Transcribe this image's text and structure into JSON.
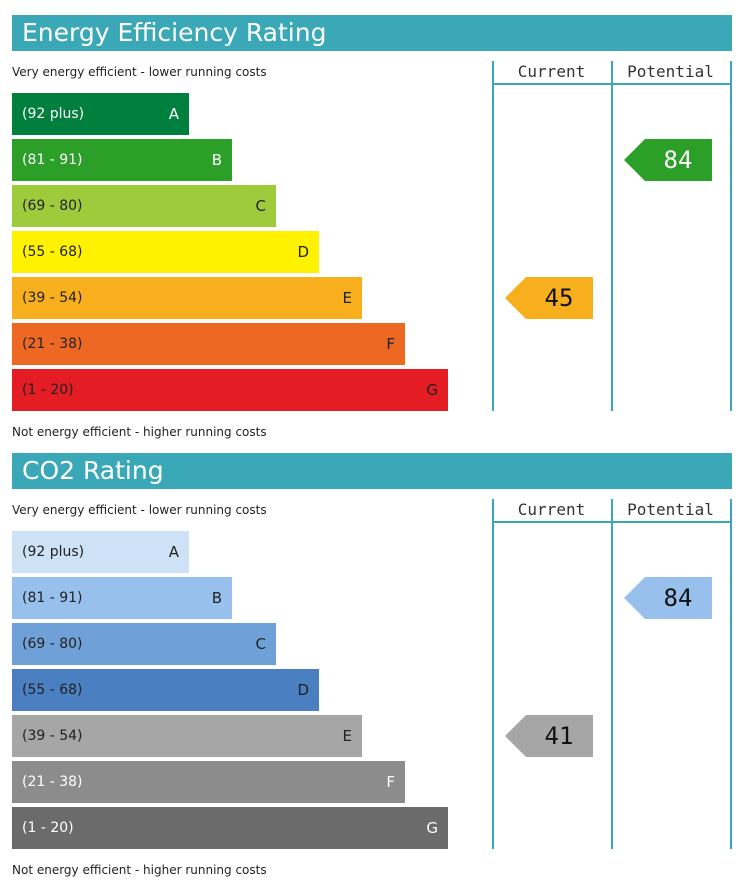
{
  "energy": {
    "title": "Energy Efficiency Rating",
    "top_caption": "Very energy efficient - lower running costs",
    "bottom_caption": "Not energy efficient - higher running costs",
    "col_current": "Current",
    "col_potential": "Potential",
    "bands": [
      {
        "range": "(92 plus)",
        "letter": "A",
        "color": "#007f3d",
        "text_color": "#ffffff"
      },
      {
        "range": "(81 - 91)",
        "letter": "B",
        "color": "#2c9f29",
        "text_color": "#ffffff"
      },
      {
        "range": "(69 - 80)",
        "letter": "C",
        "color": "#9dcb3c",
        "text_color": "#222222"
      },
      {
        "range": "(55 - 68)",
        "letter": "D",
        "color": "#fff200",
        "text_color": "#222222"
      },
      {
        "range": "(39 - 54)",
        "letter": "E",
        "color": "#f7af1d",
        "text_color": "#222222"
      },
      {
        "range": "(21 - 38)",
        "letter": "F",
        "color": "#ed6823",
        "text_color": "#222222"
      },
      {
        "range": "(1 - 20)",
        "letter": "G",
        "color": "#e31d23",
        "text_color": "#222222"
      }
    ],
    "current": {
      "value": "45",
      "band": "E",
      "color": "#f7af1d"
    },
    "potential": {
      "value": "84",
      "band": "B",
      "color": "#2c9f29",
      "text_color": "#ffffff"
    }
  },
  "co2": {
    "title": "CO2 Rating",
    "top_caption": "Very energy efficient - lower running costs",
    "bottom_caption": "Not energy efficient - higher running costs",
    "col_current": "Current",
    "col_potential": "Potential",
    "bands": [
      {
        "range": "(92 plus)",
        "letter": "A",
        "color": "#cde2f5",
        "text_color": "#222222"
      },
      {
        "range": "(81 - 91)",
        "letter": "B",
        "color": "#97c1ec",
        "text_color": "#222222"
      },
      {
        "range": "(69 - 80)",
        "letter": "C",
        "color": "#6fa1d8",
        "text_color": "#222222"
      },
      {
        "range": "(55 - 68)",
        "letter": "D",
        "color": "#4a7fc1",
        "text_color": "#222222"
      },
      {
        "range": "(39 - 54)",
        "letter": "E",
        "color": "#a6a6a6",
        "text_color": "#222222"
      },
      {
        "range": "(21 - 38)",
        "letter": "F",
        "color": "#8c8c8c",
        "text_color": "#ffffff"
      },
      {
        "range": "(1 - 20)",
        "letter": "G",
        "color": "#6b6b6b",
        "text_color": "#ffffff"
      }
    ],
    "current": {
      "value": "41",
      "band": "E",
      "color": "#a6a6a6"
    },
    "potential": {
      "value": "84",
      "band": "B",
      "color": "#97c1ec"
    }
  },
  "chart_data": [
    {
      "type": "bar",
      "title": "Energy Efficiency Rating",
      "categories": [
        "A",
        "B",
        "C",
        "D",
        "E",
        "F",
        "G"
      ],
      "ranges": [
        "(92 plus)",
        "(81 - 91)",
        "(69 - 80)",
        "(55 - 68)",
        "(39 - 54)",
        "(21 - 38)",
        "(1 - 20)"
      ],
      "current": 45,
      "potential": 84
    },
    {
      "type": "bar",
      "title": "CO2 Rating",
      "categories": [
        "A",
        "B",
        "C",
        "D",
        "E",
        "F",
        "G"
      ],
      "ranges": [
        "(92 plus)",
        "(81 - 91)",
        "(69 - 80)",
        "(55 - 68)",
        "(39 - 54)",
        "(21 - 38)",
        "(1 - 20)"
      ],
      "current": 41,
      "potential": 84
    }
  ]
}
